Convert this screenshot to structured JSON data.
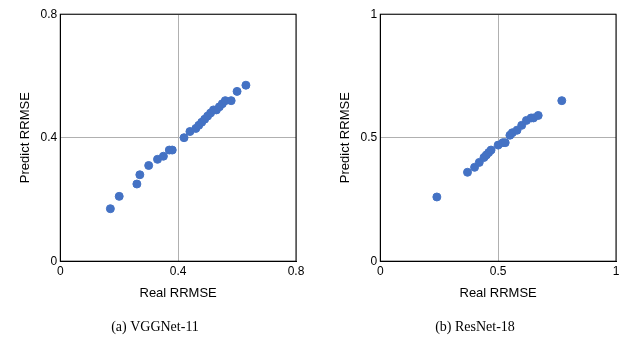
{
  "chart_data": [
    {
      "type": "scatter",
      "title": "(a) VGGNet-11",
      "xlabel": "Real RRMSE",
      "ylabel": "Predict RRMSE",
      "color": "#4472c4",
      "marker": "circle",
      "grid": true,
      "x": [
        0.17,
        0.2,
        0.26,
        0.27,
        0.3,
        0.33,
        0.35,
        0.37,
        0.38,
        0.42,
        0.44,
        0.46,
        0.47,
        0.48,
        0.49,
        0.5,
        0.51,
        0.52,
        0.53,
        0.54,
        0.55,
        0.56,
        0.58,
        0.6,
        0.63
      ],
      "values": [
        0.17,
        0.21,
        0.25,
        0.28,
        0.31,
        0.33,
        0.34,
        0.36,
        0.36,
        0.4,
        0.42,
        0.43,
        0.44,
        0.45,
        0.46,
        0.47,
        0.48,
        0.49,
        0.49,
        0.5,
        0.51,
        0.52,
        0.52,
        0.55,
        0.57
      ],
      "xlim": [
        0,
        0.8
      ],
      "ylim": [
        0,
        0.8
      ],
      "xticks": [
        0,
        0.4,
        0.8
      ],
      "yticks": [
        0,
        0.4,
        0.8
      ]
    },
    {
      "type": "scatter",
      "title": "(b) ResNet-18",
      "xlabel": "Real RRMSE",
      "ylabel": "Predict RRMSE",
      "color": "#4472c4",
      "marker": "circle",
      "grid": true,
      "x": [
        0.24,
        0.37,
        0.4,
        0.42,
        0.44,
        0.45,
        0.46,
        0.47,
        0.5,
        0.52,
        0.53,
        0.55,
        0.56,
        0.58,
        0.6,
        0.62,
        0.64,
        0.65,
        0.67,
        0.77
      ],
      "values": [
        0.26,
        0.36,
        0.38,
        0.4,
        0.42,
        0.43,
        0.44,
        0.45,
        0.47,
        0.48,
        0.48,
        0.51,
        0.52,
        0.53,
        0.55,
        0.57,
        0.58,
        0.58,
        0.59,
        0.65
      ],
      "xlim": [
        0,
        1
      ],
      "ylim": [
        0,
        1
      ],
      "xticks": [
        0,
        0.5,
        1
      ],
      "yticks": [
        0,
        0.5,
        1
      ]
    }
  ]
}
